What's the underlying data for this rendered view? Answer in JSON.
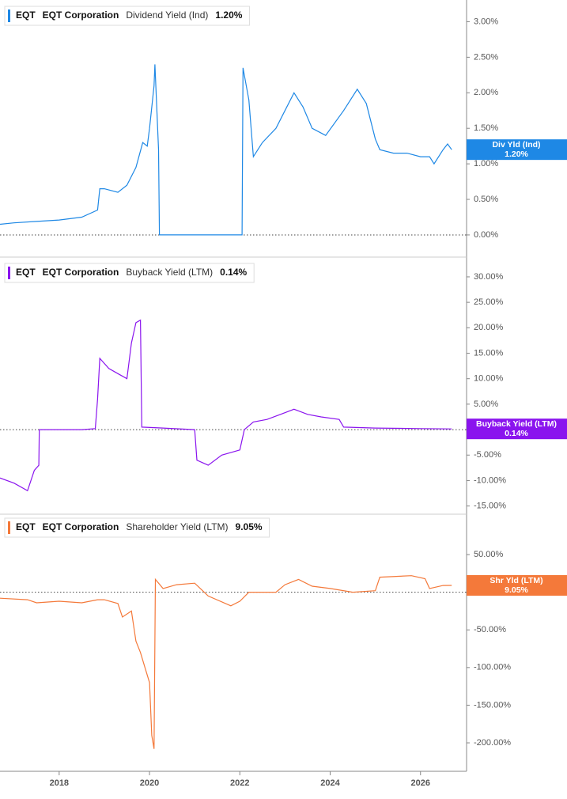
{
  "chart_data": [
    {
      "type": "line",
      "ticker": "EQT",
      "company": "EQT Corporation",
      "reference_line": 0,
      "xlim": [
        2016.69,
        2027.02
      ],
      "ylim": [
        -0.29,
        3.25
      ],
      "yticks": [
        {
          "value": 0,
          "label": "0.00%"
        },
        {
          "value": 0.5,
          "label": "0.50%"
        },
        {
          "value": 1,
          "label": "1.00%"
        },
        {
          "value": 1.5,
          "label": "1.50%"
        },
        {
          "value": 2,
          "label": "2.00%"
        },
        {
          "value": 2.5,
          "label": "2.50%"
        },
        {
          "value": 3,
          "label": "3.00%"
        }
      ],
      "x": [
        2016.69,
        2017.0,
        2017.5,
        2018.0,
        2018.5,
        2018.85,
        2018.9,
        2019.0,
        2019.3,
        2019.5,
        2019.7,
        2019.85,
        2019.95,
        2020.0,
        2020.1,
        2020.12,
        2020.2,
        2020.22,
        2022.05,
        2022.07,
        2022.2,
        2022.3,
        2022.5,
        2022.8,
        2023.0,
        2023.2,
        2023.4,
        2023.6,
        2023.9,
        2024.3,
        2024.6,
        2024.8,
        2025.0,
        2025.1,
        2025.4,
        2025.7,
        2026.0,
        2026.2,
        2026.3,
        2026.5,
        2026.6,
        2026.69
      ],
      "series": [
        {
          "name": "Dividend Yield (Ind)",
          "short_name": "Div Yld (Ind)",
          "last_label": "1.20%",
          "color": "#1e88e5",
          "values": [
            0.15,
            0.17,
            0.19,
            0.21,
            0.25,
            0.35,
            0.65,
            0.65,
            0.6,
            0.7,
            0.95,
            1.3,
            1.25,
            1.5,
            2.1,
            2.4,
            1.2,
            0.0,
            0.0,
            2.35,
            1.9,
            1.1,
            1.3,
            1.5,
            1.75,
            2.0,
            1.8,
            1.5,
            1.4,
            1.75,
            2.05,
            1.85,
            1.35,
            1.2,
            1.15,
            1.15,
            1.1,
            1.1,
            1.0,
            1.2,
            1.28,
            1.2
          ]
        }
      ]
    },
    {
      "type": "line",
      "ticker": "EQT",
      "company": "EQT Corporation",
      "reference_line": 0,
      "xlim": [
        2016.69,
        2027.02
      ],
      "ylim": [
        -16.3,
        33.1
      ],
      "yticks": [
        {
          "value": -15,
          "label": "-15.00%"
        },
        {
          "value": -10,
          "label": "-10.00%"
        },
        {
          "value": -5,
          "label": "-5.00%"
        },
        {
          "value": 5,
          "label": "5.00%"
        },
        {
          "value": 10,
          "label": "10.00%"
        },
        {
          "value": 15,
          "label": "15.00%"
        },
        {
          "value": 20,
          "label": "20.00%"
        },
        {
          "value": 25,
          "label": "25.00%"
        },
        {
          "value": 30,
          "label": "30.00%"
        }
      ],
      "x": [
        2016.69,
        2017.0,
        2017.3,
        2017.45,
        2017.55,
        2017.56,
        2018.5,
        2018.8,
        2018.85,
        2018.9,
        2019.1,
        2019.3,
        2019.5,
        2019.6,
        2019.7,
        2019.8,
        2019.83,
        2020.3,
        2021.0,
        2021.05,
        2021.3,
        2021.6,
        2022.0,
        2022.1,
        2022.3,
        2022.6,
        2022.9,
        2023.2,
        2023.5,
        2023.8,
        2024.2,
        2024.3,
        2025.0,
        2026.0,
        2026.69
      ],
      "series": [
        {
          "name": "Buyback Yield (LTM)",
          "short_name": "Buyback Yield (LTM)",
          "last_label": "0.14%",
          "color": "#8a14ee",
          "values": [
            -9.5,
            -10.5,
            -12,
            -8,
            -7,
            0,
            0,
            0.2,
            6,
            14,
            12,
            11,
            10,
            17,
            21,
            21.5,
            0.5,
            0.3,
            0,
            -6,
            -7,
            -5,
            -4,
            0,
            1.5,
            2,
            3,
            4,
            3,
            2.5,
            2,
            0.5,
            0.3,
            0.2,
            0.14
          ]
        }
      ]
    },
    {
      "type": "line",
      "ticker": "EQT",
      "company": "EQT Corporation",
      "reference_line": 0,
      "xlim": [
        2016.69,
        2027.02
      ],
      "ylim": [
        -237.8,
        101.5
      ],
      "xticks": [
        2018,
        2020,
        2022,
        2024,
        2026
      ],
      "yticks": [
        {
          "value": -200,
          "label": "-200.00%"
        },
        {
          "value": -150,
          "label": "-150.00%"
        },
        {
          "value": -100,
          "label": "-100.00%"
        },
        {
          "value": -50,
          "label": "-50.00%"
        },
        {
          "value": 50,
          "label": "50.00%"
        }
      ],
      "x": [
        2016.69,
        2017.3,
        2017.5,
        2018.0,
        2018.5,
        2018.85,
        2019.0,
        2019.3,
        2019.4,
        2019.6,
        2019.7,
        2019.8,
        2019.9,
        2020.0,
        2020.05,
        2020.1,
        2020.13,
        2020.3,
        2020.6,
        2021.0,
        2021.3,
        2021.8,
        2022.0,
        2022.2,
        2022.8,
        2023.0,
        2023.3,
        2023.6,
        2024.0,
        2024.5,
        2025.0,
        2025.1,
        2025.8,
        2026.1,
        2026.2,
        2026.5,
        2026.69
      ],
      "series": [
        {
          "name": "Shareholder Yield (LTM)",
          "short_name": "Shr Yld (LTM)",
          "last_label": "9.05%",
          "color": "#f4793a",
          "values": [
            -8,
            -10,
            -14,
            -12,
            -14,
            -10,
            -10,
            -15,
            -33,
            -25,
            -65,
            -80,
            -100,
            -120,
            -190,
            -208,
            17,
            5,
            10,
            12,
            -5,
            -18,
            -12,
            0,
            0,
            10,
            17,
            8,
            5,
            0,
            2,
            20,
            22,
            18,
            5,
            9,
            9.05
          ]
        }
      ]
    }
  ]
}
